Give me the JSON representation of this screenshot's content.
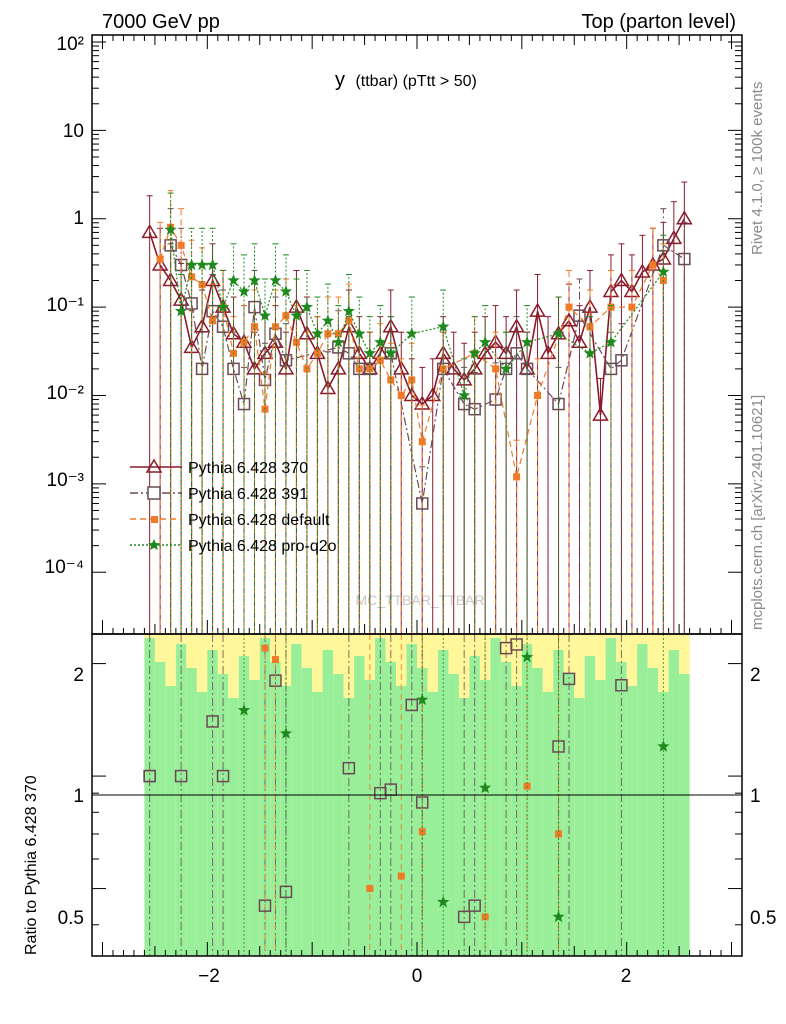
{
  "header": {
    "left": "7000 GeV pp",
    "right": "Top (parton level)"
  },
  "side": {
    "rivet": "Rivet 4.1.0, ≥ 100k events",
    "mcplots": "mcplots.cern.ch [arXiv:2401.10621]"
  },
  "chart_data": {
    "type": "scatter",
    "title_main": "y",
    "title_sub": "(ttbar)  (pTtt > 50)",
    "watermark": "MC_TTBAR_TTBAR",
    "xlabel": "",
    "ylabel_main": "",
    "ylabel_ratio": "Ratio to Pythia 6.428 370",
    "xlim": [
      -3.1,
      3.1
    ],
    "ylim_main": [
      2e-05,
      120
    ],
    "log_y": true,
    "ylim_ratio": [
      0.33,
      2.4
    ],
    "x_ticks": [
      "−2",
      "0",
      "2"
    ],
    "y_ticks_main": [
      "10⁻⁴",
      "10⁻³",
      "10⁻²",
      "10⁻¹",
      "1",
      "10",
      "10²"
    ],
    "y_ticks_ratio": [
      "0.5",
      "1",
      "2"
    ],
    "legend_position": "left",
    "series": [
      {
        "name": "Pythia 6.428 370",
        "color": "#8b1a2b",
        "marker": "triangle-open",
        "x": [
          -2.55,
          -2.45,
          -2.35,
          -2.25,
          -2.15,
          -2.05,
          -1.95,
          -1.85,
          -1.75,
          -1.65,
          -1.55,
          -1.45,
          -1.35,
          -1.25,
          -1.15,
          -1.05,
          -0.95,
          -0.85,
          -0.75,
          -0.65,
          -0.55,
          -0.45,
          -0.35,
          -0.25,
          -0.15,
          -0.05,
          0.05,
          0.15,
          0.25,
          0.35,
          0.45,
          0.55,
          0.65,
          0.75,
          0.85,
          0.95,
          1.05,
          1.15,
          1.25,
          1.35,
          1.45,
          1.55,
          1.65,
          1.75,
          1.85,
          1.95,
          2.05,
          2.15,
          2.25,
          2.35,
          2.45,
          2.55
        ],
        "y": [
          0.7,
          0.3,
          0.2,
          0.12,
          0.035,
          0.06,
          0.2,
          0.1,
          0.05,
          0.04,
          0.02,
          0.03,
          0.04,
          0.02,
          0.1,
          0.05,
          0.03,
          0.012,
          0.02,
          0.06,
          0.03,
          0.02,
          0.03,
          0.06,
          0.02,
          0.01,
          0.008,
          0.01,
          0.03,
          0.02,
          0.015,
          0.02,
          0.03,
          0.04,
          0.03,
          0.06,
          0.02,
          0.09,
          0.03,
          0.05,
          0.07,
          0.04,
          0.1,
          0.006,
          0.15,
          0.2,
          0.15,
          0.25,
          0.3,
          0.35,
          0.6,
          1.0
        ]
      },
      {
        "name": "Pythia 6.428 391",
        "color": "#6b4a55",
        "marker": "square-open",
        "x": [
          -2.35,
          -2.25,
          -2.15,
          -2.05,
          -1.95,
          -1.85,
          -1.75,
          -1.65,
          -1.55,
          -1.45,
          -1.35,
          -1.25,
          -0.75,
          -0.65,
          -0.55,
          -0.45,
          -0.25,
          0.05,
          0.25,
          0.45,
          0.55,
          0.75,
          0.85,
          0.95,
          1.05,
          1.35,
          1.55,
          1.85,
          1.95,
          2.35,
          2.55
        ],
        "y": [
          0.5,
          0.3,
          0.11,
          0.02,
          0.09,
          0.06,
          0.02,
          0.008,
          0.1,
          0.015,
          0.05,
          0.025,
          0.035,
          0.03,
          0.02,
          0.02,
          0.03,
          0.0006,
          0.02,
          0.008,
          0.007,
          0.009,
          0.02,
          0.03,
          0.02,
          0.008,
          0.08,
          0.02,
          0.025,
          0.5,
          0.35
        ]
      },
      {
        "name": "Pythia 6.428 default",
        "color": "#f07a28",
        "marker": "square-filled",
        "x": [
          -2.45,
          -2.35,
          -2.25,
          -2.15,
          -2.05,
          -1.95,
          -1.85,
          -1.75,
          -1.65,
          -1.55,
          -1.45,
          -1.35,
          -1.25,
          -1.15,
          -1.05,
          -0.95,
          -0.85,
          -0.75,
          -0.65,
          -0.55,
          -0.45,
          -0.35,
          -0.25,
          -0.15,
          -0.05,
          0.05,
          0.25,
          0.55,
          0.75,
          0.95,
          1.15,
          1.45,
          1.65,
          1.85,
          2.05,
          2.25,
          2.35
        ],
        "y": [
          0.35,
          0.8,
          0.5,
          0.22,
          0.18,
          0.07,
          0.1,
          0.03,
          0.04,
          0.06,
          0.007,
          0.06,
          0.08,
          0.04,
          0.02,
          0.03,
          0.05,
          0.05,
          0.07,
          0.02,
          0.02,
          0.025,
          0.015,
          0.01,
          0.015,
          0.003,
          0.02,
          0.03,
          0.02,
          0.0012,
          0.01,
          0.1,
          0.06,
          0.1,
          0.1,
          0.3,
          0.2
        ]
      },
      {
        "name": "Pythia 6.428 pro-q2o",
        "color": "#1e8a1e",
        "marker": "star",
        "x": [
          -2.35,
          -2.25,
          -2.15,
          -2.05,
          -1.95,
          -1.85,
          -1.75,
          -1.65,
          -1.55,
          -1.45,
          -1.35,
          -1.25,
          -1.15,
          -1.05,
          -0.95,
          -0.85,
          -0.75,
          -0.65,
          -0.55,
          -0.45,
          -0.35,
          -0.25,
          -0.05,
          0.25,
          0.45,
          0.55,
          0.65,
          0.85,
          1.05,
          1.35,
          1.65,
          1.85,
          2.35
        ],
        "y": [
          0.75,
          0.09,
          0.3,
          0.3,
          0.3,
          0.1,
          0.2,
          0.15,
          0.2,
          0.08,
          0.2,
          0.15,
          0.08,
          0.1,
          0.05,
          0.07,
          0.04,
          0.09,
          0.05,
          0.03,
          0.04,
          0.03,
          0.05,
          0.06,
          0.01,
          0.03,
          0.04,
          0.02,
          0.04,
          0.05,
          0.03,
          0.04,
          0.25
        ]
      }
    ],
    "ratio": {
      "reference": "Pythia 6.428 370",
      "series": [
        {
          "name": "Pythia 6.428 391",
          "x": [
            -2.55,
            -2.25,
            -1.95,
            -1.85,
            -1.45,
            -1.35,
            -1.25,
            -0.65,
            -0.35,
            -0.25,
            -0.05,
            0.05,
            0.45,
            0.55,
            0.85,
            0.95,
            1.35,
            1.45,
            1.95
          ],
          "y": [
            1.0,
            1.0,
            1.4,
            1.0,
            0.45,
            1.8,
            0.49,
            1.05,
            0.9,
            0.92,
            1.55,
            0.85,
            0.42,
            0.45,
            2.2,
            2.25,
            1.2,
            1.82,
            1.75
          ]
        },
        {
          "name": "Pythia 6.428 default",
          "x": [
            -1.45,
            -1.35,
            -0.45,
            -0.15,
            0.05,
            0.65,
            1.05,
            1.35
          ],
          "y": [
            2.2,
            2.05,
            0.5,
            0.54,
            0.71,
            0.42,
            0.94,
            0.7
          ]
        },
        {
          "name": "Pythia 6.428 pro-q2o",
          "x": [
            -1.65,
            -1.25,
            0.05,
            0.25,
            0.65,
            1.05,
            1.35,
            2.35
          ],
          "y": [
            1.5,
            1.3,
            1.6,
            0.46,
            0.93,
            2.08,
            0.42,
            1.2
          ]
        }
      ]
    }
  }
}
